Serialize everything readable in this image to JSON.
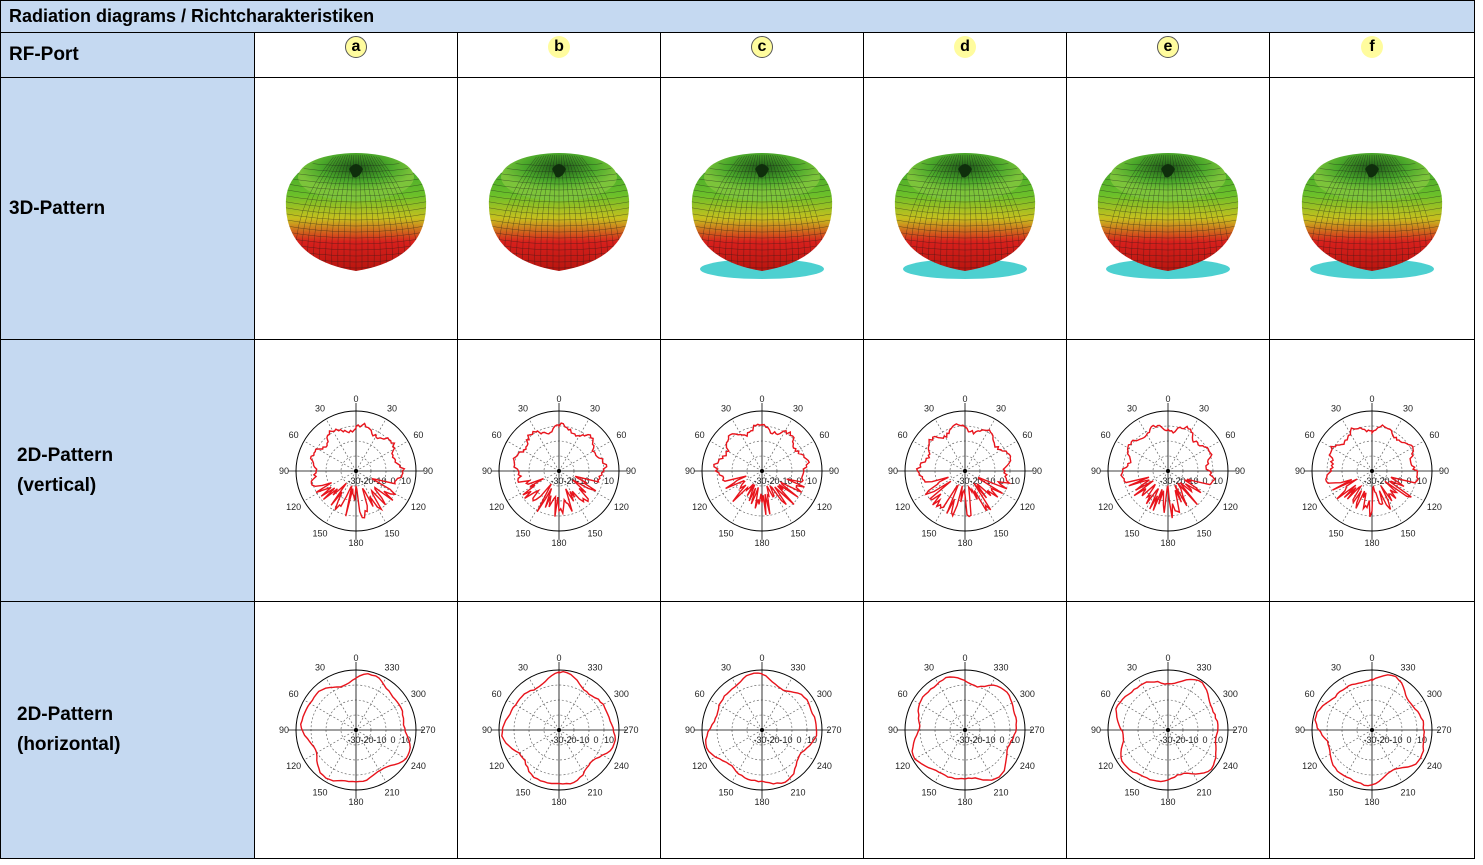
{
  "title": "Radiation diagrams / Richtcharakteristiken",
  "row_labels": {
    "rf_port": "RF-Port",
    "pattern_3d": "3D-Pattern",
    "pattern_2d_vertical": [
      "2D-Pattern",
      "(vertical)"
    ],
    "pattern_2d_horizontal": [
      "2D-Pattern",
      "(horizontal)"
    ]
  },
  "ports": [
    {
      "letter": "a",
      "ringed": true
    },
    {
      "letter": "b",
      "ringed": false
    },
    {
      "letter": "c",
      "ringed": true
    },
    {
      "letter": "d",
      "ringed": false
    },
    {
      "letter": "e",
      "ringed": true
    },
    {
      "letter": "f",
      "ringed": false
    }
  ],
  "polar_ticks": {
    "vertical_angles": [
      "0",
      "30",
      "30",
      "60",
      "60",
      "90",
      "90",
      "120",
      "120",
      "150",
      "150",
      "180"
    ],
    "horizontal_angles": [
      "0",
      "30",
      "330",
      "60",
      "300",
      "90",
      "270",
      "120",
      "240",
      "150",
      "210",
      "180"
    ],
    "radial": [
      "-30",
      "-20",
      "-10",
      "0",
      "10"
    ]
  },
  "colors": {
    "header_fill": "#c5d9f1",
    "port_badge": "#fffc9e",
    "pattern_trace": "#e8141c",
    "mesh_green": "#3faa2a",
    "mesh_red": "#d8201c",
    "mesh_cyan": "#2ec8c8"
  }
}
